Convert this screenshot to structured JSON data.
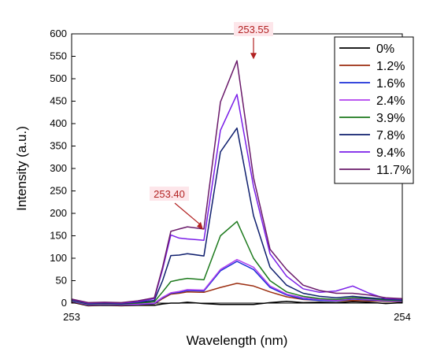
{
  "chart_data": {
    "type": "line",
    "xlabel": "Wavelength (nm)",
    "ylabel": "Intensity (a.u.)",
    "xlim": [
      253,
      254
    ],
    "ylim": [
      0,
      600
    ],
    "x_ticks": [
      "253",
      "254"
    ],
    "y_ticks": [
      "0",
      "50",
      "100",
      "150",
      "200",
      "250",
      "300",
      "350",
      "400",
      "450",
      "500",
      "550",
      "600"
    ],
    "legend_position": "top-right",
    "grid": false,
    "x": [
      253.0,
      253.05,
      253.1,
      253.15,
      253.2,
      253.25,
      253.275,
      253.3,
      253.325,
      253.35,
      253.4,
      253.45,
      253.5,
      253.55,
      253.6,
      253.65,
      253.7,
      253.75,
      253.8,
      253.85,
      253.9,
      253.95,
      254.0
    ],
    "series": [
      {
        "name": "0%",
        "color": "#000000",
        "values": [
          2,
          -6,
          -5,
          -6,
          -5,
          -5,
          -2,
          0,
          0,
          2,
          -1,
          -3,
          -3,
          -3,
          1,
          4,
          1,
          2,
          1,
          3,
          2,
          -1,
          1
        ]
      },
      {
        "name": "1.2%",
        "color": "#9b2d10",
        "values": [
          3,
          -5,
          -4,
          -5,
          -4,
          -2,
          10,
          20,
          22,
          25,
          24,
          35,
          44,
          38,
          25,
          14,
          8,
          6,
          5,
          6,
          5,
          4,
          3
        ]
      },
      {
        "name": "1.6%",
        "color": "#1c2fd8",
        "values": [
          4,
          -4,
          -3,
          -4,
          -3,
          -1,
          12,
          22,
          24,
          28,
          27,
          72,
          93,
          75,
          35,
          18,
          9,
          6,
          5,
          9,
          7,
          5,
          4
        ]
      },
      {
        "name": "2.4%",
        "color": "#b040ee",
        "values": [
          5,
          -3,
          -2,
          -3,
          -2,
          0,
          13,
          23,
          26,
          30,
          29,
          75,
          97,
          80,
          38,
          20,
          12,
          8,
          6,
          10,
          8,
          6,
          5
        ]
      },
      {
        "name": "3.9%",
        "color": "#1d7a1d",
        "values": [
          6,
          -2,
          -1,
          -2,
          0,
          3,
          25,
          48,
          52,
          55,
          52,
          150,
          182,
          100,
          50,
          25,
          15,
          10,
          8,
          12,
          10,
          7,
          6
        ]
      },
      {
        "name": "7.8%",
        "color": "#0f1f6e",
        "values": [
          7,
          -1,
          0,
          -1,
          2,
          6,
          50,
          106,
          107,
          110,
          105,
          337,
          390,
          195,
          80,
          40,
          22,
          15,
          12,
          15,
          12,
          9,
          7
        ]
      },
      {
        "name": "9.4%",
        "color": "#7a1ee8",
        "values": [
          8,
          0,
          1,
          0,
          3,
          10,
          75,
          152,
          145,
          143,
          140,
          385,
          465,
          260,
          110,
          60,
          32,
          24,
          27,
          38,
          22,
          10,
          9
        ]
      },
      {
        "name": "11.7%",
        "color": "#6a1a6a",
        "values": [
          9,
          1,
          2,
          1,
          5,
          12,
          80,
          160,
          165,
          170,
          165,
          448,
          540,
          280,
          120,
          75,
          40,
          28,
          22,
          22,
          18,
          12,
          10
        ]
      }
    ],
    "annotations": [
      {
        "text": "253.55",
        "x": 253.55,
        "y": 540,
        "color": "#b22222"
      },
      {
        "text": "253.40",
        "x": 253.4,
        "y": 160,
        "color": "#b22222"
      }
    ]
  }
}
